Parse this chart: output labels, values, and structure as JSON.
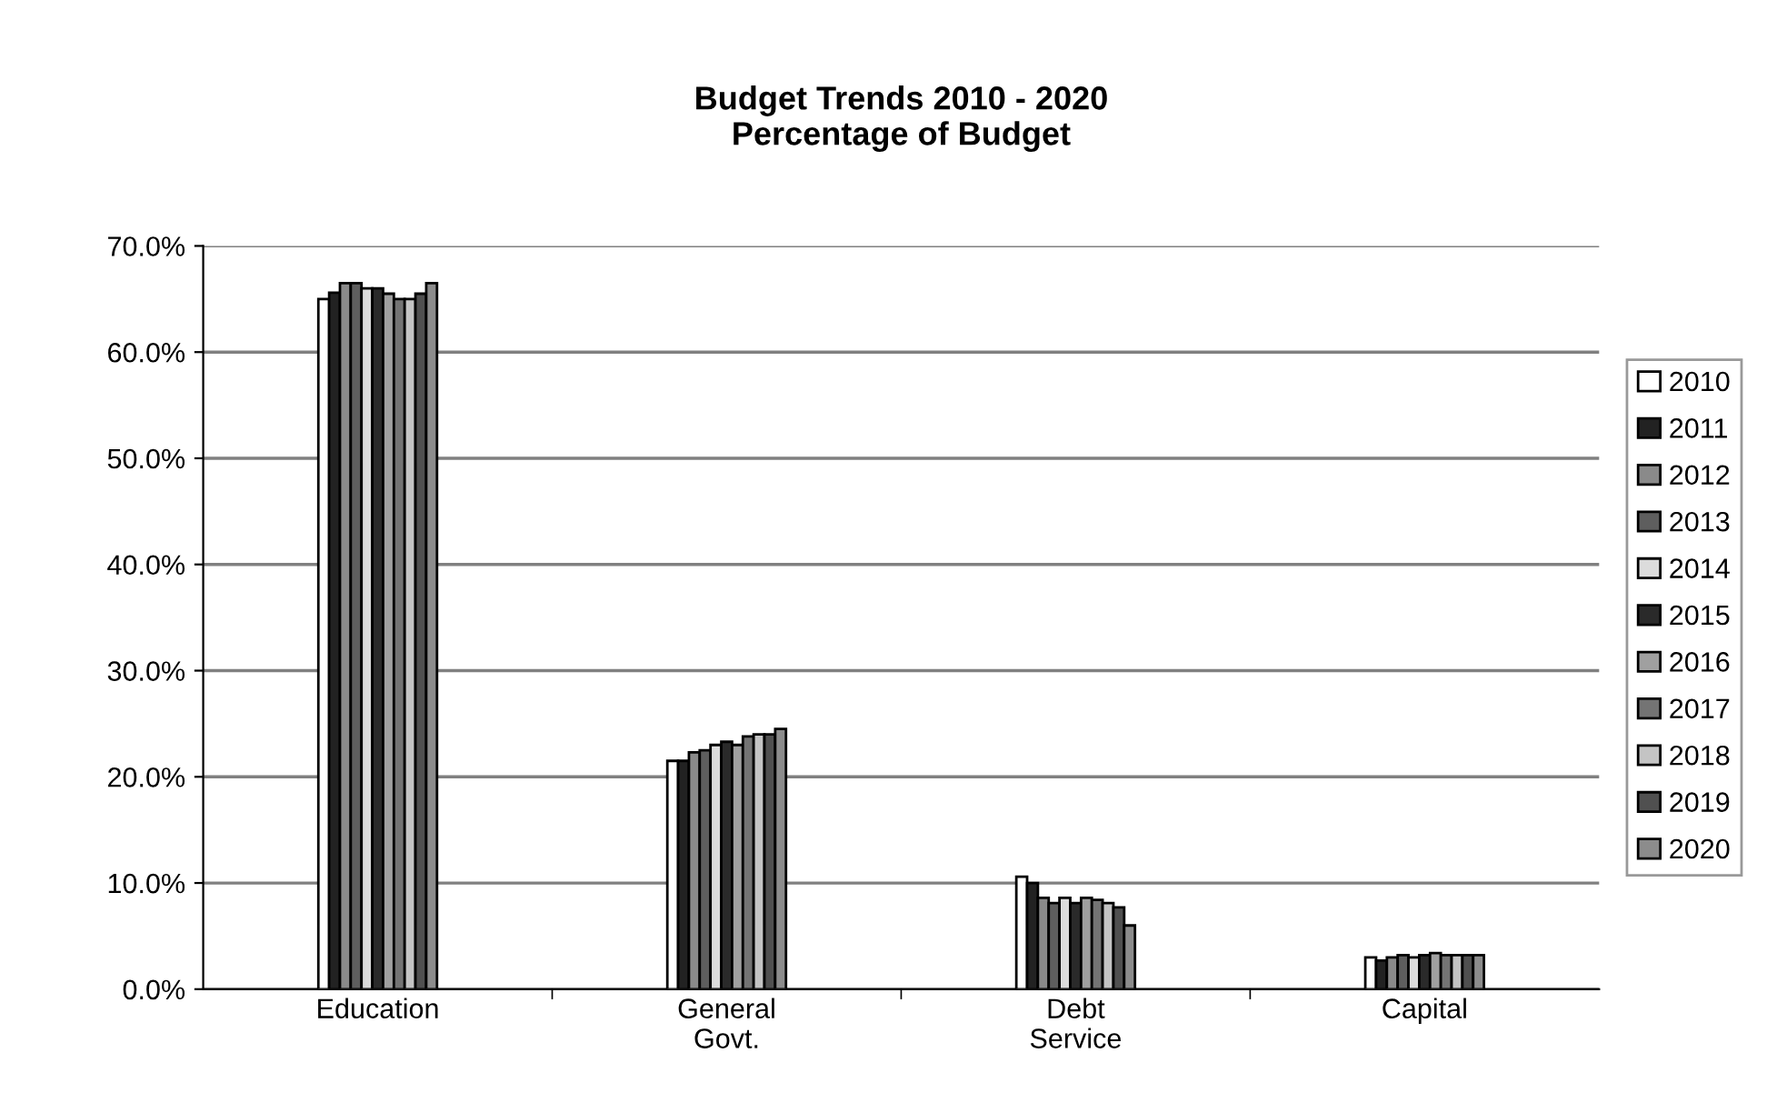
{
  "chart_data": {
    "type": "bar",
    "title": "Budget Trends 2010 - 2020\nPercentage of Budget",
    "categories": [
      "Education",
      "General\nGovt.",
      "Debt\nService",
      "Capital"
    ],
    "series": [
      {
        "name": "2010",
        "color": "#ffffff",
        "values": [
          65.0,
          21.5,
          10.6,
          3.0
        ]
      },
      {
        "name": "2011",
        "color": "#222222",
        "values": [
          65.6,
          21.5,
          10.0,
          2.7
        ]
      },
      {
        "name": "2012",
        "color": "#8a8a8a",
        "values": [
          66.5,
          22.3,
          8.6,
          3.0
        ]
      },
      {
        "name": "2013",
        "color": "#5e5e5e",
        "values": [
          66.5,
          22.5,
          8.1,
          3.2
        ]
      },
      {
        "name": "2014",
        "color": "#dcdcdc",
        "values": [
          66.0,
          23.0,
          8.6,
          3.0
        ]
      },
      {
        "name": "2015",
        "color": "#2a2a2a",
        "values": [
          66.0,
          23.3,
          8.1,
          3.2
        ]
      },
      {
        "name": "2016",
        "color": "#a0a0a0",
        "values": [
          65.5,
          23.0,
          8.6,
          3.4
        ]
      },
      {
        "name": "2017",
        "color": "#747474",
        "values": [
          65.0,
          23.8,
          8.4,
          3.2
        ]
      },
      {
        "name": "2018",
        "color": "#c4c4c4",
        "values": [
          65.0,
          24.0,
          8.1,
          3.2
        ]
      },
      {
        "name": "2019",
        "color": "#505050",
        "values": [
          65.5,
          24.0,
          7.7,
          3.2
        ]
      },
      {
        "name": "2020",
        "color": "#8c8c8c",
        "values": [
          66.5,
          24.5,
          6.0,
          3.2
        ]
      }
    ],
    "ylim": [
      0,
      70
    ],
    "yticks": [
      {
        "value": 0,
        "label": "0.0%"
      },
      {
        "value": 10,
        "label": "10.0%"
      },
      {
        "value": 20,
        "label": "20.0%"
      },
      {
        "value": 30,
        "label": "30.0%"
      },
      {
        "value": 40,
        "label": "40.0%"
      },
      {
        "value": 50,
        "label": "50.0%"
      },
      {
        "value": 60,
        "label": "60.0%"
      },
      {
        "value": 70,
        "label": "70.0%"
      }
    ],
    "grid": "y",
    "legend": "right"
  }
}
